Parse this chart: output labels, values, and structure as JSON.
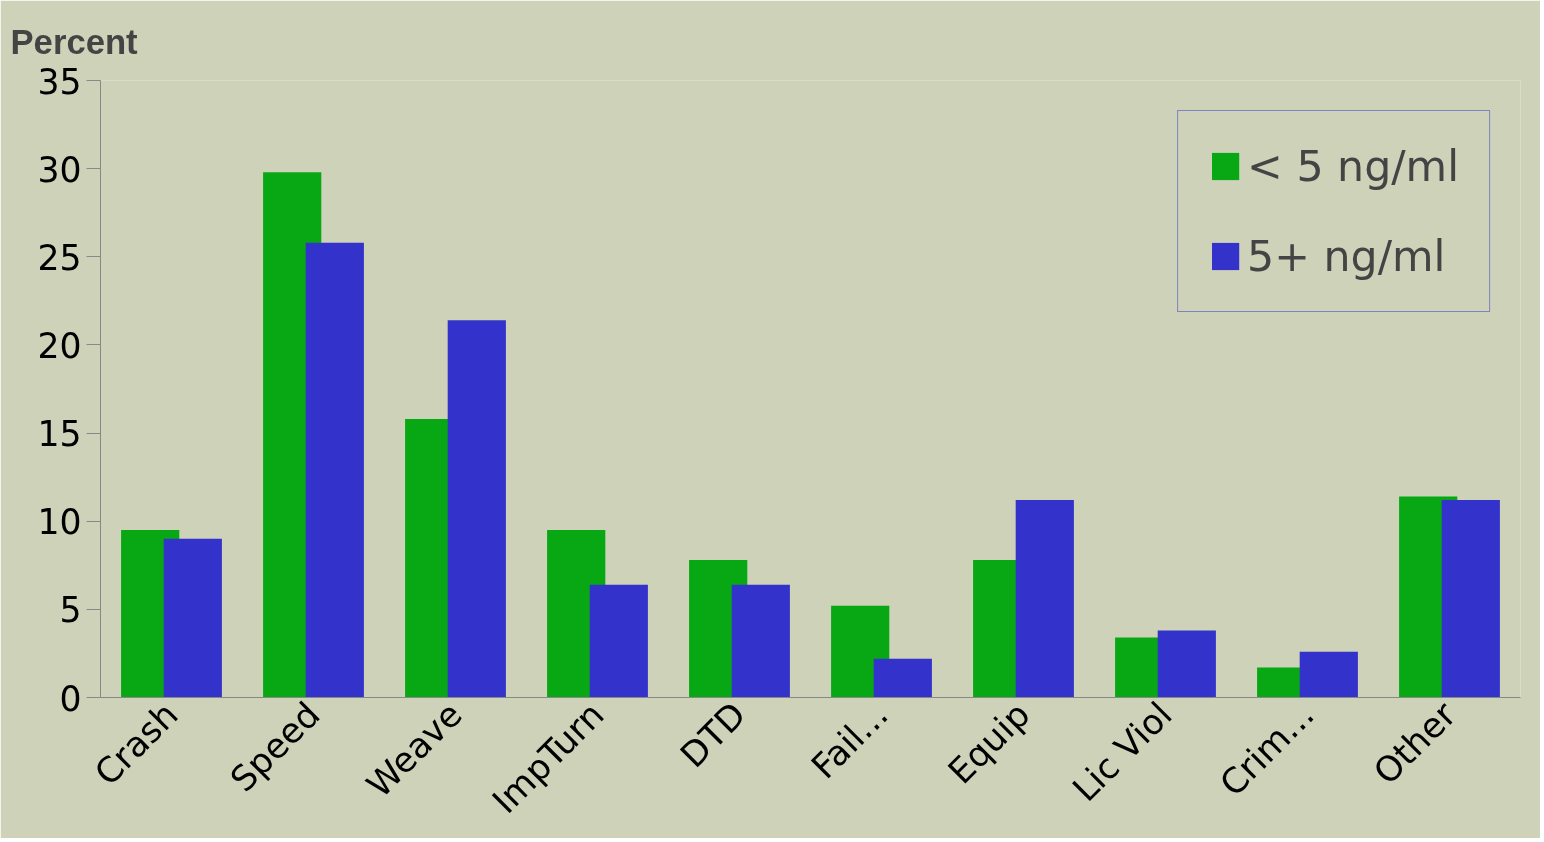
{
  "chart_data": {
    "type": "bar",
    "title": "Percent",
    "categories": [
      "Crash",
      "Speed",
      "Weave",
      "ImpTurn",
      "DTD",
      "Fail...",
      "Equip",
      "Lic Viol",
      "Crim...",
      "Other"
    ],
    "series": [
      {
        "name": "< 5 ng/ml",
        "color": "#07a814",
        "values": [
          9.5,
          29.8,
          15.8,
          9.5,
          7.8,
          5.2,
          7.8,
          3.4,
          1.7,
          11.4
        ]
      },
      {
        "name": "5+ ng/ml",
        "color": "#3333cc",
        "values": [
          9.0,
          25.8,
          21.4,
          6.4,
          6.4,
          2.2,
          11.2,
          3.8,
          2.6,
          11.2
        ]
      }
    ],
    "ylim": [
      0,
      35
    ],
    "yticks": [
      0,
      5,
      10,
      15,
      20,
      25,
      30,
      35
    ],
    "grid": false,
    "legend": "top right"
  }
}
